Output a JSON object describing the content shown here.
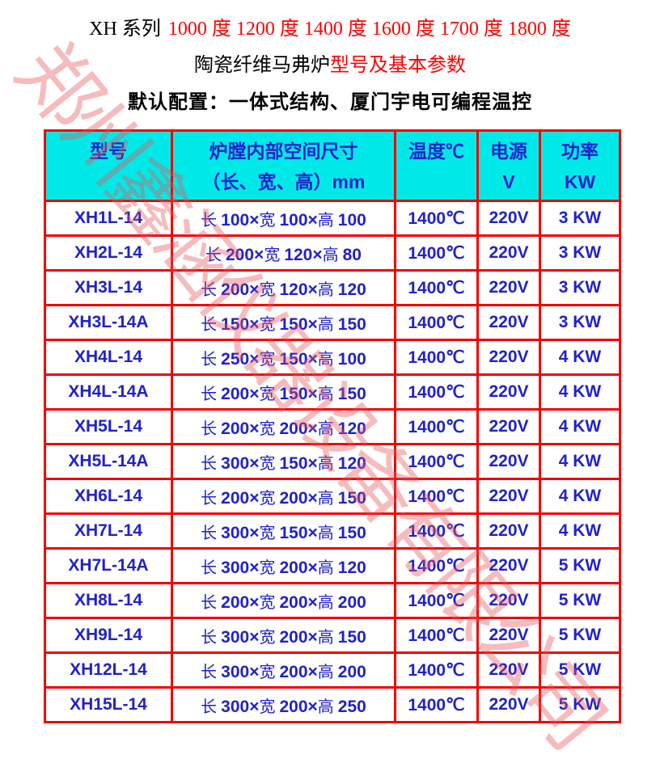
{
  "header": {
    "line1_black": "XH 系列",
    "line1_red": "1000 度 1200 度 1400 度 1600 度 1700 度 1800 度",
    "line2_black": "陶瓷纤维马弗炉",
    "line2_red": "型号及基本参数",
    "line3": "默认配置：一体式结构、厦门宇电可编程温控"
  },
  "watermark_text": "郑州鑫涵仪器设备有限公司",
  "colors": {
    "table_border": "#f40000",
    "header_background": "#00e9e9",
    "cell_text": "#2121cc",
    "title_accent": "#ff0000",
    "watermark": "#f0a0a4"
  },
  "table": {
    "headers": {
      "model": "型号",
      "chamber_line1": "炉膛内部空间尺寸",
      "chamber_line2": "（长、宽、高）mm",
      "temperature": "温度℃",
      "power_supply_line1": "电源",
      "power_supply_line2": "V",
      "power_line1": "功率",
      "power_line2": "KW"
    },
    "dim_labels": {
      "length": "长",
      "width": "宽",
      "height": "高"
    },
    "times_symbol": "×",
    "rows": [
      {
        "model": "XH1L-14",
        "length": "100",
        "width": "100",
        "height": "100",
        "temperature": "1400℃",
        "voltage": "220V",
        "power": "3 KW"
      },
      {
        "model": "XH2L-14",
        "length": "200",
        "width": "120",
        "height": "80",
        "temperature": "1400℃",
        "voltage": "220V",
        "power": "3 KW"
      },
      {
        "model": "XH3L-14",
        "length": "200",
        "width": "120",
        "height": "120",
        "temperature": "1400℃",
        "voltage": "220V",
        "power": "3 KW"
      },
      {
        "model": "XH3L-14A",
        "length": "150",
        "width": "150",
        "height": "150",
        "temperature": "1400℃",
        "voltage": "220V",
        "power": "3 KW"
      },
      {
        "model": "XH4L-14",
        "length": "250",
        "width": "150",
        "height": "100",
        "temperature": "1400℃",
        "voltage": "220V",
        "power": "4 KW"
      },
      {
        "model": "XH4L-14A",
        "length": "200",
        "width": "150",
        "height": "150",
        "temperature": "1400℃",
        "voltage": "220V",
        "power": "4 KW"
      },
      {
        "model": "XH5L-14",
        "length": "200",
        "width": "200",
        "height": "120",
        "temperature": "1400℃",
        "voltage": "220V",
        "power": "4 KW"
      },
      {
        "model": "XH5L-14A",
        "length": "300",
        "width": "150",
        "height": "120",
        "temperature": "1400℃",
        "voltage": "220V",
        "power": "4 KW"
      },
      {
        "model": "XH6L-14",
        "length": "200",
        "width": "200",
        "height": "150",
        "temperature": "1400℃",
        "voltage": "220V",
        "power": "4 KW"
      },
      {
        "model": "XH7L-14",
        "length": "300",
        "width": "150",
        "height": "150",
        "temperature": "1400℃",
        "voltage": "220V",
        "power": "4 KW"
      },
      {
        "model": "XH7L-14A",
        "length": "300",
        "width": "200",
        "height": "120",
        "temperature": "1400℃",
        "voltage": "220V",
        "power": "5 KW"
      },
      {
        "model": "XH8L-14",
        "length": "200",
        "width": "200",
        "height": "200",
        "temperature": "1400℃",
        "voltage": "220V",
        "power": "5 KW"
      },
      {
        "model": "XH9L-14",
        "length": "300",
        "width": "200",
        "height": "150",
        "temperature": "1400℃",
        "voltage": "220V",
        "power": "5 KW"
      },
      {
        "model": "XH12L-14",
        "length": "300",
        "width": "200",
        "height": "200",
        "temperature": "1400℃",
        "voltage": "220V",
        "power": "5 KW"
      },
      {
        "model": "XH15L-14",
        "length": "300",
        "width": "200",
        "height": "250",
        "temperature": "1400℃",
        "voltage": "220V",
        "power": "5 KW"
      }
    ]
  }
}
